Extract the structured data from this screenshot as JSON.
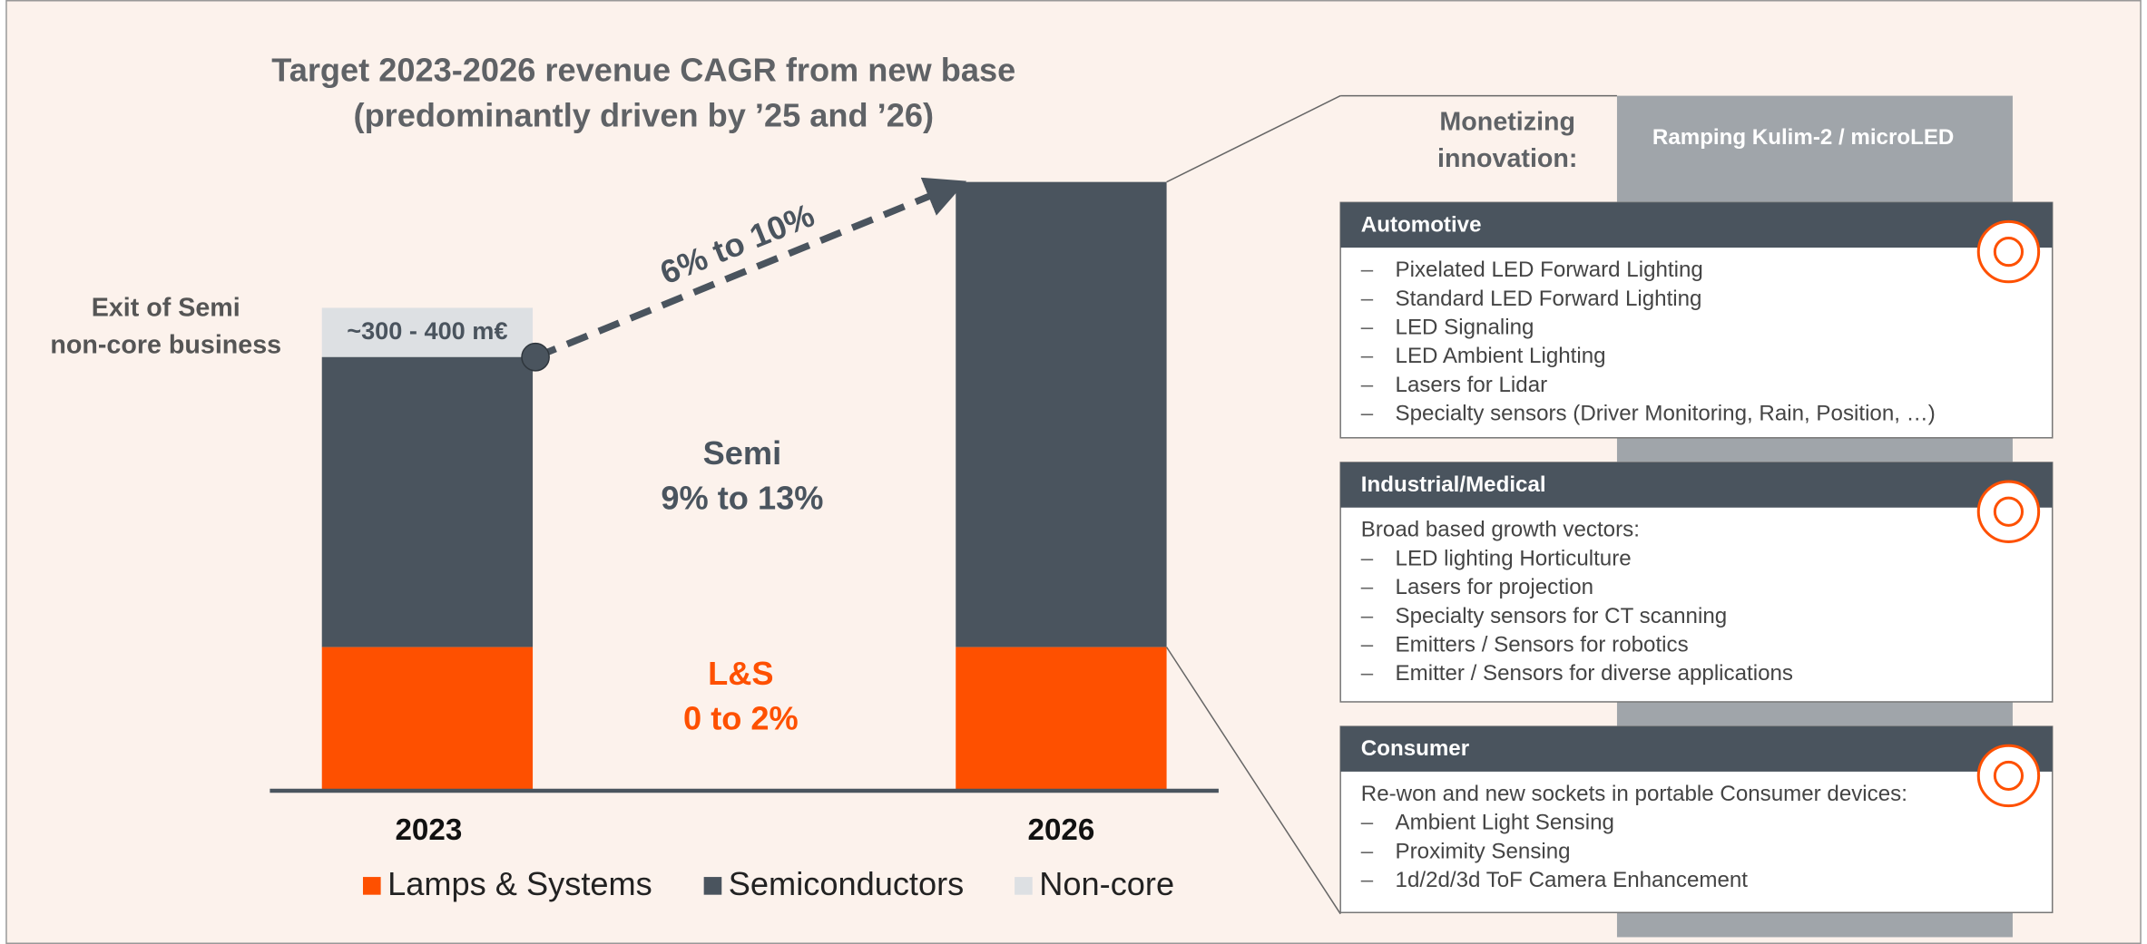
{
  "title": [
    "Target 2023-2026 revenue CAGR from new base",
    "(predominantly driven by ’25 and ’26)"
  ],
  "exit_label": [
    "Exit of Semi",
    "non-core business"
  ],
  "noncore_amount": "~300 - 400 m€",
  "total_growth": "6% to 10%",
  "semi_growth": [
    "Semi",
    "9% to 13%"
  ],
  "ls_growth": [
    "L&S",
    "0 to 2%"
  ],
  "years": [
    "2023",
    "2026"
  ],
  "legend": [
    "Lamps & Systems",
    "Semiconductors",
    "Non-core"
  ],
  "monetizing": [
    "Monetizing",
    "innovation:"
  ],
  "ramping": "Ramping Kulim-2 / microLED",
  "boxes": [
    {
      "title": "Automotive",
      "items": [
        "Pixelated LED Forward Lighting",
        "Standard LED Forward Lighting",
        "LED Signaling",
        "LED Ambient Lighting",
        "Lasers for Lidar",
        "Specialty sensors (Driver Monitoring, Rain, Position, …)"
      ]
    },
    {
      "title": "Industrial/Medical",
      "intro": "Broad based growth vectors:",
      "items": [
        "LED lighting Horticulture",
        "Lasers for projection",
        "Specialty sensors for CT scanning",
        "Emitters / Sensors for robotics",
        "Emitter / Sensors for diverse applications"
      ]
    },
    {
      "title": "Consumer",
      "intro": "Re-won and new sockets in portable Consumer devices:",
      "items": [
        "Ambient Light Sensing",
        "Proximity Sensing",
        "1d/2d/3d ToF Camera Enhancement"
      ]
    }
  ]
}
